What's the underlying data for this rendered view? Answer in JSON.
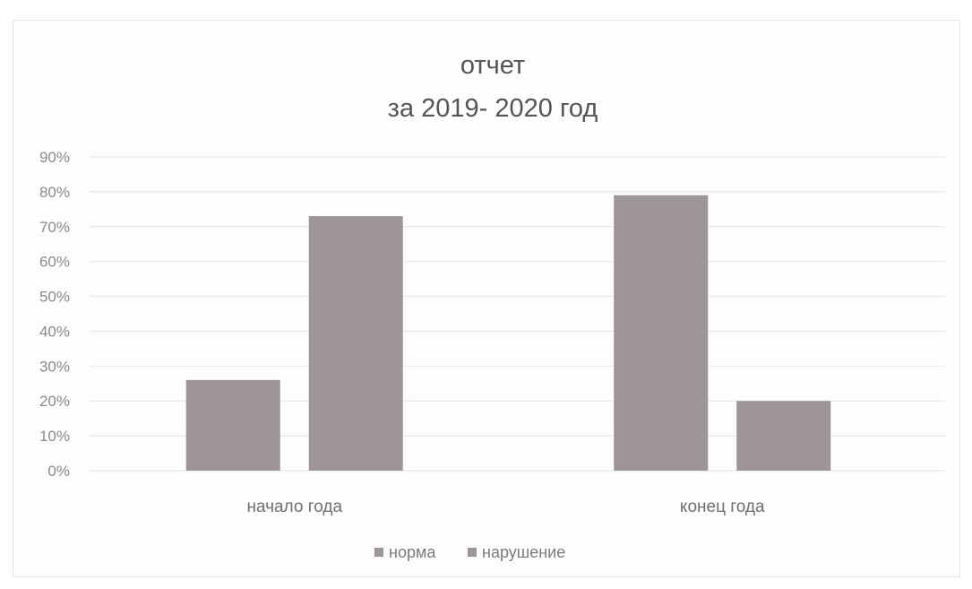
{
  "chart_data": {
    "type": "bar",
    "title_lines": [
      "отчет",
      "за 2019- 2020 год"
    ],
    "categories": [
      "начало года",
      "конец года"
    ],
    "series": [
      {
        "name": "норма",
        "values": [
          26,
          79
        ],
        "color": "#9d9599"
      },
      {
        "name": "нарушение",
        "values": [
          73,
          20
        ],
        "color": "#9d9599"
      }
    ],
    "y_ticks": [
      "0%",
      "10%",
      "20%",
      "30%",
      "40%",
      "50%",
      "60%",
      "70%",
      "80%",
      "90%"
    ],
    "ylim": [
      0,
      90
    ],
    "grid": true,
    "legend_position": "bottom"
  }
}
